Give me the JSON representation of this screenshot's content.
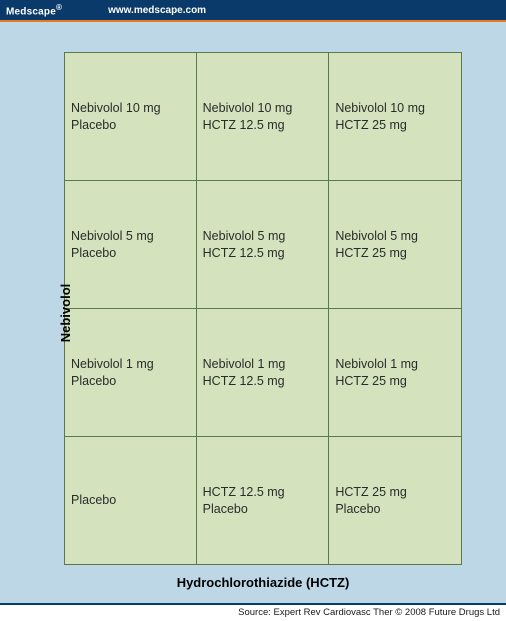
{
  "header": {
    "brand": "Medscape",
    "reg_mark": "®",
    "url": "www.medscape.com"
  },
  "diagram": {
    "type": "grid-matrix",
    "y_axis_label": "Nebivolol",
    "x_axis_label": "Hydrochlorothiazide (HCTZ)",
    "rows": 4,
    "cols": 3,
    "colors": {
      "page_bg": "#bdd7e7",
      "cell_bg": "#d4e3bd",
      "cell_border": "#5a7a4a",
      "topbar_bg": "#0a3a6a",
      "accent_rule": "#e57a1f",
      "text": "#2b2b2b"
    },
    "cells": [
      {
        "line1": "Nebivolol 10 mg",
        "line2": "Placebo"
      },
      {
        "line1": "Nebivolol 10 mg",
        "line2": "HCTZ 12.5 mg"
      },
      {
        "line1": "Nebivolol 10 mg",
        "line2": "HCTZ 25 mg"
      },
      {
        "line1": "Nebivolol 5 mg",
        "line2": "Placebo"
      },
      {
        "line1": "Nebivolol 5 mg",
        "line2": "HCTZ 12.5 mg"
      },
      {
        "line1": "Nebivolol 5 mg",
        "line2": "HCTZ 25 mg"
      },
      {
        "line1": "Nebivolol 1 mg",
        "line2": "Placebo"
      },
      {
        "line1": "Nebivolol 1 mg",
        "line2": "HCTZ 12.5 mg"
      },
      {
        "line1": "Nebivolol 1 mg",
        "line2": "HCTZ 25 mg"
      },
      {
        "line1": "Placebo",
        "line2": ""
      },
      {
        "line1": "HCTZ 12.5 mg",
        "line2": "Placebo"
      },
      {
        "line1": "HCTZ 25 mg",
        "line2": "Placebo"
      }
    ]
  },
  "footer": {
    "source": "Source: Expert Rev Cardiovasc Ther © 2008 Future Drugs Ltd"
  }
}
